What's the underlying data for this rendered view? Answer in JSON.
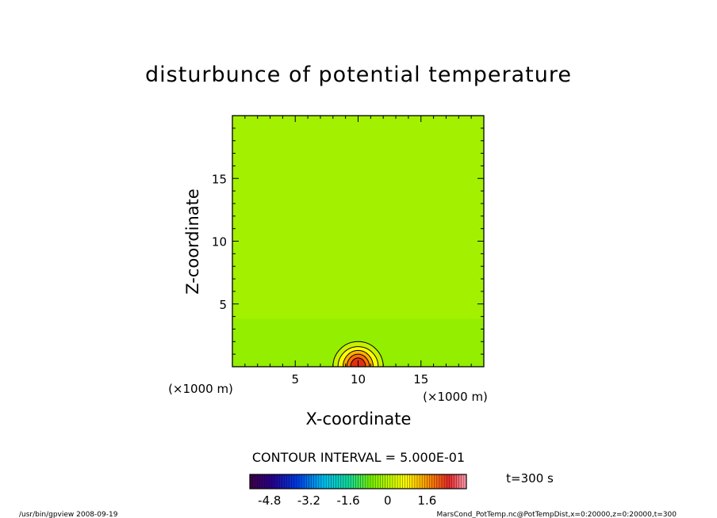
{
  "chart_data": {
    "type": "heatmap",
    "title": "disturbunce of potential temperature",
    "xlabel": "X-coordinate",
    "ylabel": "Z-coordinate",
    "x_unit": "(×1000 m)",
    "y_unit": "(×1000 m)",
    "xlim": [
      0,
      20
    ],
    "ylim": [
      0,
      20
    ],
    "x_ticks": [
      5,
      10,
      15
    ],
    "y_ticks": [
      5,
      10,
      15
    ],
    "background_value": 0,
    "lower_layer": {
      "value": 0.1,
      "z_top": 3.8
    },
    "anomaly": {
      "center_x": 10,
      "center_z": 0,
      "contours": [
        {
          "level": 0.5,
          "radius_x": 2.0,
          "radius_z": 2.0
        },
        {
          "level": 1.0,
          "radius_x": 1.6,
          "radius_z": 1.6
        },
        {
          "level": 1.5,
          "radius_x": 1.2,
          "radius_z": 1.3
        },
        {
          "level": 2.0,
          "radius_x": 0.9,
          "radius_z": 1.0
        },
        {
          "level": 2.5,
          "radius_x": 0.6,
          "radius_z": 0.7
        }
      ]
    },
    "contour_interval_text": "CONTOUR INTERVAL = 5.000E-01",
    "colorbar": {
      "min": -5.6,
      "max": 3.2,
      "tick_labels": [
        "-4.8",
        "-3.2",
        "-1.6",
        "0",
        "1.6"
      ],
      "tick_values": [
        -4.8,
        -3.2,
        -1.6,
        0,
        1.6
      ]
    },
    "time_label": "t=300 s"
  },
  "footer": {
    "left": "/usr/bin/gpview  2008-09-19",
    "right": "MarsCond_PotTemp.nc@PotTempDist,x=0:20000,z=0:20000,t=300"
  }
}
